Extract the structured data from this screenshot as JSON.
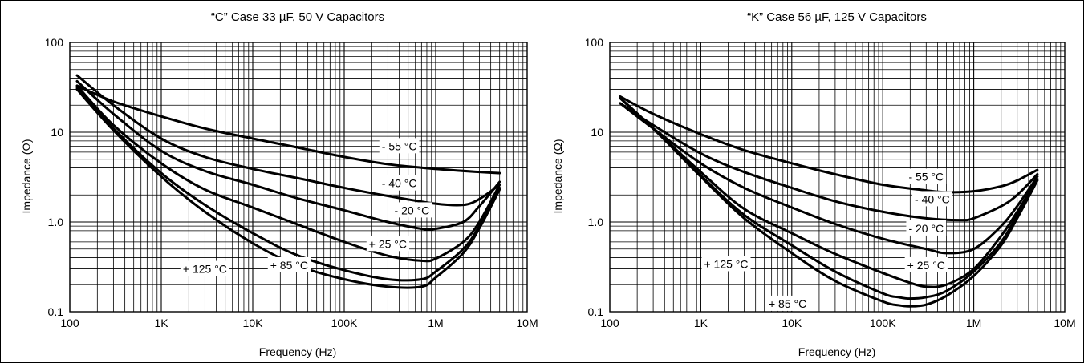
{
  "colors": {
    "line": "#000000",
    "grid": "#000000",
    "background": "#ffffff"
  },
  "chart_data": [
    {
      "type": "line",
      "title": "“C” Case 33 µF, 50 V Capacitors",
      "xlabel": "Frequency (Hz)",
      "ylabel": "Impedance (Ω)",
      "xscale": "log",
      "yscale": "log",
      "xlim": [
        100,
        10000000
      ],
      "ylim": [
        0.1,
        100
      ],
      "grid": true,
      "x_ticks": [
        {
          "value": 100,
          "label": "100"
        },
        {
          "value": 1000,
          "label": "1K"
        },
        {
          "value": 10000,
          "label": "10K"
        },
        {
          "value": 100000,
          "label": "100K"
        },
        {
          "value": 1000000,
          "label": "1M"
        },
        {
          "value": 10000000,
          "label": "10M"
        }
      ],
      "y_ticks": [
        {
          "value": 0.1,
          "label": "0.1"
        },
        {
          "value": 1,
          "label": "1.0"
        },
        {
          "value": 10,
          "label": "10"
        },
        {
          "value": 100,
          "label": "100"
        }
      ],
      "series": [
        {
          "name": "- 55 °C",
          "label_at": [
            400000,
            7.0
          ],
          "x": [
            120,
            300,
            1000,
            3000,
            10000,
            30000,
            100000,
            300000,
            1000000,
            3000000,
            5000000
          ],
          "y": [
            33,
            22,
            15,
            11,
            8.5,
            6.8,
            5.3,
            4.4,
            3.9,
            3.6,
            3.5
          ]
        },
        {
          "name": "- 40 °C",
          "label_at": [
            400000,
            2.7
          ],
          "x": [
            120,
            300,
            1000,
            3000,
            10000,
            30000,
            100000,
            300000,
            1000000,
            2000000,
            3000000,
            5000000
          ],
          "y": [
            43,
            20,
            8.5,
            5.3,
            3.9,
            3.1,
            2.4,
            1.95,
            1.6,
            1.55,
            1.8,
            2.6
          ]
        },
        {
          "name": "- 20 °C",
          "label_at": [
            550000,
            1.35
          ],
          "x": [
            120,
            300,
            1000,
            3000,
            10000,
            30000,
            100000,
            300000,
            700000,
            1000000,
            2000000,
            3000000,
            5000000
          ],
          "y": [
            37,
            16,
            6.2,
            3.7,
            2.6,
            1.85,
            1.35,
            1.0,
            0.84,
            0.84,
            1.0,
            1.5,
            2.8
          ]
        },
        {
          "name": "+ 25 °C",
          "label_at": [
            300000,
            0.57
          ],
          "x": [
            120,
            300,
            1000,
            3000,
            10000,
            30000,
            100000,
            300000,
            700000,
            1000000,
            2000000,
            3000000,
            5000000
          ],
          "y": [
            33,
            12,
            4.5,
            2.3,
            1.45,
            0.95,
            0.6,
            0.42,
            0.37,
            0.39,
            0.6,
            1.0,
            2.6
          ]
        },
        {
          "name": "+ 85 °C",
          "label_at": [
            25000,
            0.33
          ],
          "x": [
            120,
            300,
            1000,
            3000,
            10000,
            30000,
            100000,
            300000,
            700000,
            1000000,
            2000000,
            3000000,
            5000000
          ],
          "y": [
            31,
            11,
            3.5,
            1.55,
            0.75,
            0.43,
            0.29,
            0.23,
            0.23,
            0.28,
            0.5,
            0.9,
            2.4
          ]
        },
        {
          "name": "+ 125 °C",
          "label_at": [
            3000,
            0.3
          ],
          "x": [
            120,
            300,
            1000,
            3000,
            10000,
            30000,
            100000,
            300000,
            700000,
            1000000,
            2000000,
            3000000,
            5000000
          ],
          "y": [
            30,
            10.5,
            3.2,
            1.3,
            0.58,
            0.33,
            0.23,
            0.19,
            0.19,
            0.24,
            0.45,
            0.85,
            2.3
          ]
        }
      ]
    },
    {
      "type": "line",
      "title": "“K” Case 56 µF, 125 V Capacitors",
      "xlabel": "Frequency (Hz)",
      "ylabel": "Impedance (Ω)",
      "xscale": "log",
      "yscale": "log",
      "xlim": [
        100,
        10000000
      ],
      "ylim": [
        0.1,
        100
      ],
      "grid": true,
      "x_ticks": [
        {
          "value": 100,
          "label": "100"
        },
        {
          "value": 1000,
          "label": "1K"
        },
        {
          "value": 10000,
          "label": "10K"
        },
        {
          "value": 100000,
          "label": "100K"
        },
        {
          "value": 1000000,
          "label": "1M"
        },
        {
          "value": 10000000,
          "label": "10M"
        }
      ],
      "y_ticks": [
        {
          "value": 0.1,
          "label": "0.1"
        },
        {
          "value": 1,
          "label": "1.0"
        },
        {
          "value": 10,
          "label": "10"
        },
        {
          "value": 100,
          "label": "100"
        }
      ],
      "series": [
        {
          "name": "- 55 °C",
          "label_at": [
            300000,
            3.2
          ],
          "x": [
            130,
            300,
            1000,
            3000,
            10000,
            30000,
            100000,
            300000,
            500000,
            1000000,
            2000000,
            3000000,
            5000000
          ],
          "y": [
            25,
            16,
            9.5,
            6.3,
            4.5,
            3.4,
            2.6,
            2.25,
            2.15,
            2.2,
            2.5,
            2.9,
            3.8
          ]
        },
        {
          "name": "- 40 °C",
          "label_at": [
            350000,
            1.8
          ],
          "x": [
            130,
            300,
            1000,
            3000,
            10000,
            30000,
            100000,
            300000,
            700000,
            1000000,
            2000000,
            3000000,
            5000000
          ],
          "y": [
            21,
            12,
            5.8,
            3.6,
            2.4,
            1.7,
            1.3,
            1.1,
            1.05,
            1.1,
            1.5,
            2.0,
            3.4
          ]
        },
        {
          "name": "- 20 °C",
          "label_at": [
            300000,
            0.85
          ],
          "x": [
            130,
            300,
            1000,
            3000,
            10000,
            30000,
            100000,
            300000,
            500000,
            1000000,
            2000000,
            3000000,
            5000000
          ],
          "y": [
            21,
            11,
            4.5,
            2.4,
            1.45,
            0.95,
            0.65,
            0.5,
            0.45,
            0.5,
            0.9,
            1.5,
            3.2
          ]
        },
        {
          "name": "+ 25 °C",
          "label_at": [
            300000,
            0.33
          ],
          "x": [
            130,
            300,
            1000,
            3000,
            10000,
            30000,
            100000,
            200000,
            300000,
            500000,
            1000000,
            2000000,
            3000000,
            5000000
          ],
          "y": [
            24,
            11,
            3.6,
            1.4,
            0.75,
            0.44,
            0.27,
            0.21,
            0.19,
            0.2,
            0.3,
            0.7,
            1.3,
            3.0
          ]
        },
        {
          "name": "+ 125 °C",
          "label_at": [
            1900,
            0.34
          ],
          "x": [
            130,
            300,
            1000,
            3000,
            10000,
            30000,
            100000,
            150000,
            200000,
            300000,
            500000,
            1000000,
            2000000,
            3000000,
            5000000
          ],
          "y": [
            24,
            11,
            3.3,
            1.2,
            0.55,
            0.28,
            0.16,
            0.145,
            0.14,
            0.145,
            0.17,
            0.28,
            0.6,
            1.2,
            3.0
          ]
        },
        {
          "name": "+ 85 °C",
          "label_at": [
            9000,
            0.123
          ],
          "x": [
            130,
            300,
            1000,
            3000,
            10000,
            30000,
            100000,
            150000,
            200000,
            300000,
            500000,
            1000000,
            2000000,
            3000000,
            5000000
          ],
          "y": [
            24,
            11,
            3.2,
            1.1,
            0.45,
            0.22,
            0.13,
            0.118,
            0.115,
            0.12,
            0.15,
            0.25,
            0.55,
            1.1,
            2.9
          ]
        }
      ]
    }
  ]
}
